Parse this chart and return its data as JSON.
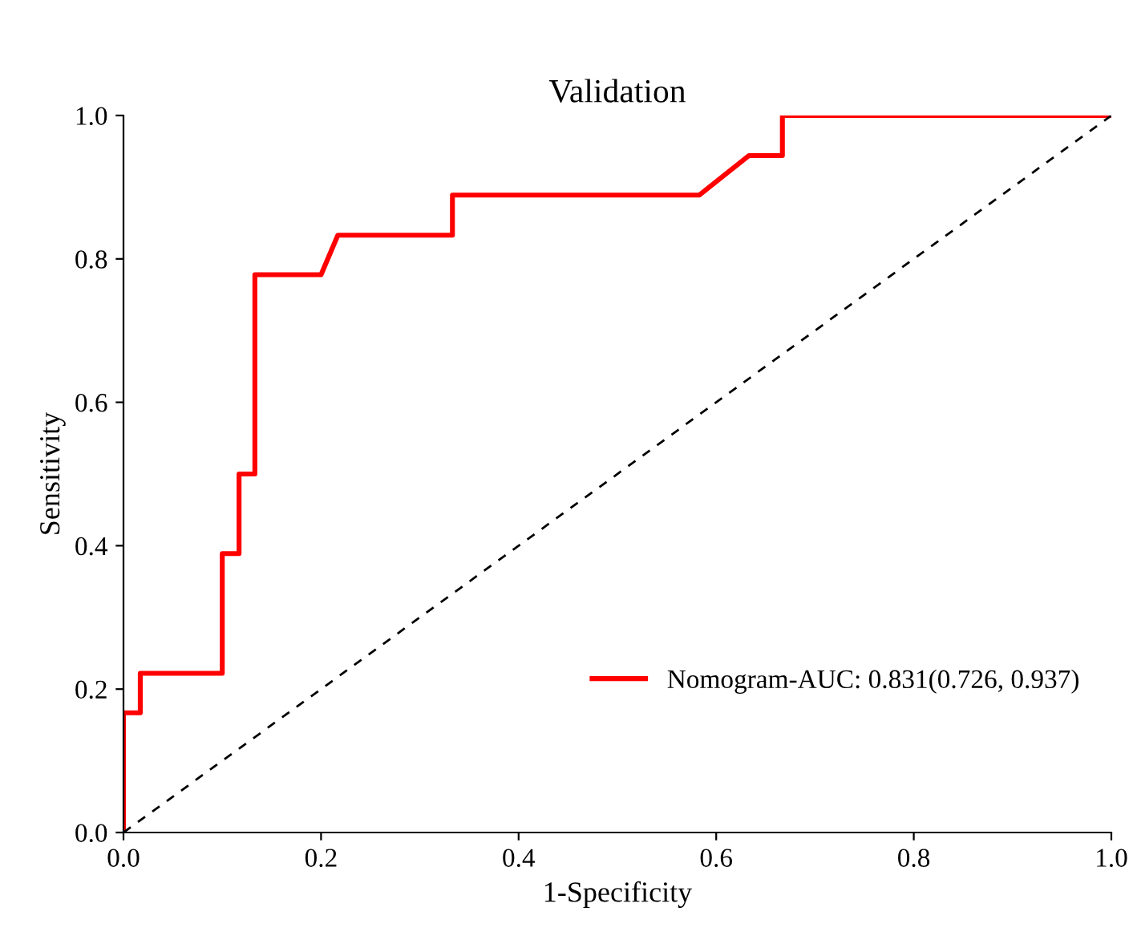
{
  "chart_data": {
    "type": "line",
    "title": "Validation",
    "xlabel": "1-Specificity",
    "ylabel": "Sensitivity",
    "xlim": [
      0,
      1
    ],
    "ylim": [
      0,
      1
    ],
    "xticks": [
      {
        "value": 0,
        "label": "0.0"
      },
      {
        "value": 0.2,
        "label": "0.2"
      },
      {
        "value": 0.4,
        "label": "0.4"
      },
      {
        "value": 0.6,
        "label": "0.6"
      },
      {
        "value": 0.8,
        "label": "0.8"
      },
      {
        "value": 1,
        "label": "1.0"
      }
    ],
    "yticks": [
      {
        "value": 0,
        "label": "0.0"
      },
      {
        "value": 0.2,
        "label": "0.2"
      },
      {
        "value": 0.4,
        "label": "0.4"
      },
      {
        "value": 0.6,
        "label": "0.6"
      },
      {
        "value": 0.8,
        "label": "0.8"
      },
      {
        "value": 1,
        "label": "1.0"
      }
    ],
    "grid": false,
    "legend": "bottom right",
    "marker": "none",
    "series": [
      {
        "name": "Nomogram-AUC: 0.831(0.726, 0.937)",
        "color": "#ff0000",
        "line_style": "solid",
        "x": [
          0,
          0,
          0.017,
          0.017,
          0.1,
          0.1,
          0.117,
          0.117,
          0.133,
          0.133,
          0.2,
          0.217,
          0.333,
          0.333,
          0.583,
          0.633,
          0.667,
          0.667,
          1
        ],
        "values": [
          0,
          0.167,
          0.167,
          0.222,
          0.222,
          0.389,
          0.389,
          0.5,
          0.5,
          0.778,
          0.778,
          0.833,
          0.833,
          0.889,
          0.889,
          0.944,
          0.944,
          1,
          1
        ]
      },
      {
        "color": "#000000",
        "line_style": "dashed",
        "x": [
          0,
          1
        ],
        "values": [
          0,
          1
        ]
      }
    ]
  }
}
